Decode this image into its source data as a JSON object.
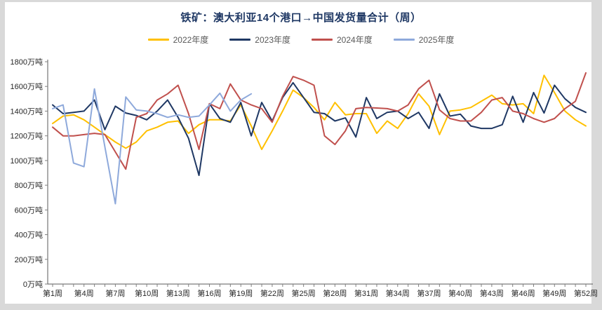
{
  "page": {
    "background": "#d9d9d9",
    "panel_background": "#ffffff"
  },
  "header": {
    "title": "铁矿：澳大利亚14个港口→中国发货量合计（周）",
    "title_color": "#1f3864"
  },
  "legend": [
    {
      "label": "2022年度",
      "color": "#FFC000"
    },
    {
      "label": "2023年度",
      "color": "#1F3864"
    },
    {
      "label": "2024年度",
      "color": "#C0504D"
    },
    {
      "label": "2025年度",
      "color": "#8EA9DB"
    }
  ],
  "chart_data": {
    "type": "line",
    "title": "铁矿：澳大利亚14个港口→中国发货量合计（周）",
    "xlabel": "",
    "ylabel": "万吨",
    "ylim": [
      0,
      1800
    ],
    "y_step": 200,
    "y_tick_labels": [
      "0万吨",
      "200万吨",
      "400万吨",
      "600万吨",
      "800万吨",
      "1000万吨",
      "1200万吨",
      "1400万吨",
      "1600万吨",
      "1800万吨"
    ],
    "x_tick_labels": [
      "第1周",
      "第4周",
      "第7周",
      "第10周",
      "第13周",
      "第16周",
      "第19周",
      "第22周",
      "第25周",
      "第28周",
      "第31周",
      "第34周",
      "第37周",
      "第40周",
      "第43周",
      "第46周",
      "第49周",
      "第52周"
    ],
    "weeks": 52,
    "grid": false,
    "legend_position": "top",
    "series": [
      {
        "name": "2022年度",
        "color": "#FFC000",
        "values": [
          1300,
          1360,
          1370,
          1330,
          1270,
          1210,
          1150,
          1100,
          1150,
          1240,
          1270,
          1310,
          1320,
          1220,
          1290,
          1330,
          1330,
          1320,
          1450,
          1280,
          1090,
          1240,
          1400,
          1570,
          1510,
          1430,
          1330,
          1470,
          1370,
          1380,
          1380,
          1220,
          1320,
          1260,
          1380,
          1540,
          1440,
          1210,
          1400,
          1410,
          1430,
          1480,
          1530,
          1460,
          1450,
          1460,
          1380,
          1690,
          1550,
          1400,
          1330,
          1280
        ]
      },
      {
        "name": "2023年度",
        "color": "#1F3864",
        "values": [
          1450,
          1380,
          1390,
          1400,
          1490,
          1250,
          1440,
          1385,
          1365,
          1330,
          1400,
          1490,
          1350,
          1180,
          880,
          1460,
          1340,
          1310,
          1470,
          1200,
          1470,
          1320,
          1510,
          1630,
          1510,
          1390,
          1380,
          1320,
          1345,
          1190,
          1510,
          1340,
          1390,
          1400,
          1340,
          1390,
          1260,
          1540,
          1360,
          1375,
          1280,
          1260,
          1260,
          1290,
          1520,
          1310,
          1550,
          1385,
          1610,
          1500,
          1430,
          1390
        ]
      },
      {
        "name": "2024年度",
        "color": "#C0504D",
        "values": [
          1270,
          1200,
          1200,
          1210,
          1220,
          1210,
          1070,
          930,
          1350,
          1380,
          1490,
          1540,
          1610,
          1380,
          1090,
          1460,
          1420,
          1620,
          1490,
          1450,
          1420,
          1310,
          1520,
          1680,
          1650,
          1610,
          1200,
          1130,
          1240,
          1420,
          1430,
          1425,
          1420,
          1400,
          1450,
          1580,
          1650,
          1410,
          1340,
          1320,
          1320,
          1390,
          1490,
          1510,
          1400,
          1380,
          1340,
          1310,
          1340,
          1420,
          1480,
          1710
        ]
      },
      {
        "name": "2025年度",
        "color": "#8EA9DB",
        "values": [
          1420,
          1450,
          980,
          950,
          1580,
          1110,
          650,
          1515,
          1410,
          1400,
          1380,
          1350,
          1370,
          1350,
          1360,
          1450,
          1545,
          1400,
          1490,
          1540
        ]
      }
    ]
  }
}
